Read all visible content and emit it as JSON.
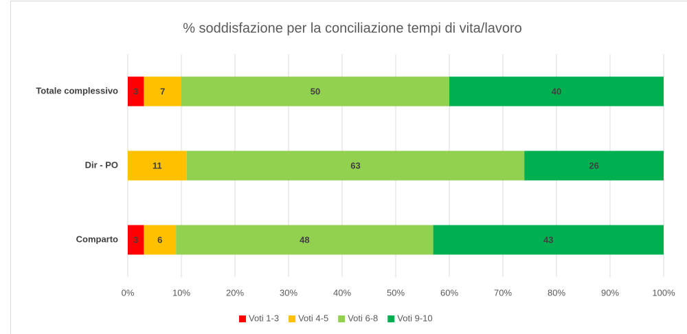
{
  "chart_data": {
    "type": "bar",
    "orientation": "horizontal",
    "stacked": true,
    "title": "% soddisfazione per la conciliazione tempi di vita/lavoro",
    "categories": [
      "Totale complessivo",
      "Dir - PO",
      "Comparto"
    ],
    "series": [
      {
        "name": "Voti 1-3",
        "color": "#ff0000",
        "values": [
          3,
          0,
          3
        ],
        "value_labels": [
          "3",
          null,
          "3"
        ]
      },
      {
        "name": "Voti 4-5",
        "color": "#ffc000",
        "values": [
          7,
          11,
          6
        ]
      },
      {
        "name": "Voti 6-8",
        "color": "#92d050",
        "values": [
          50,
          63,
          48
        ]
      },
      {
        "name": "Voti 9-10",
        "color": "#00b050",
        "values": [
          40,
          26,
          43
        ]
      }
    ],
    "xlim": [
      0,
      100
    ],
    "xticks": [
      {
        "value": 0,
        "label": "0%"
      },
      {
        "value": 10,
        "label": "10%"
      },
      {
        "value": 20,
        "label": "20%"
      },
      {
        "value": 30,
        "label": "30%"
      },
      {
        "value": 40,
        "label": "40%"
      },
      {
        "value": 50,
        "label": "50%"
      },
      {
        "value": 60,
        "label": "60%"
      },
      {
        "value": 70,
        "label": "70%"
      },
      {
        "value": 80,
        "label": "80%"
      },
      {
        "value": 90,
        "label": "90%"
      },
      {
        "value": 100,
        "label": "100%"
      }
    ],
    "grid": true,
    "legend": "bottom"
  }
}
